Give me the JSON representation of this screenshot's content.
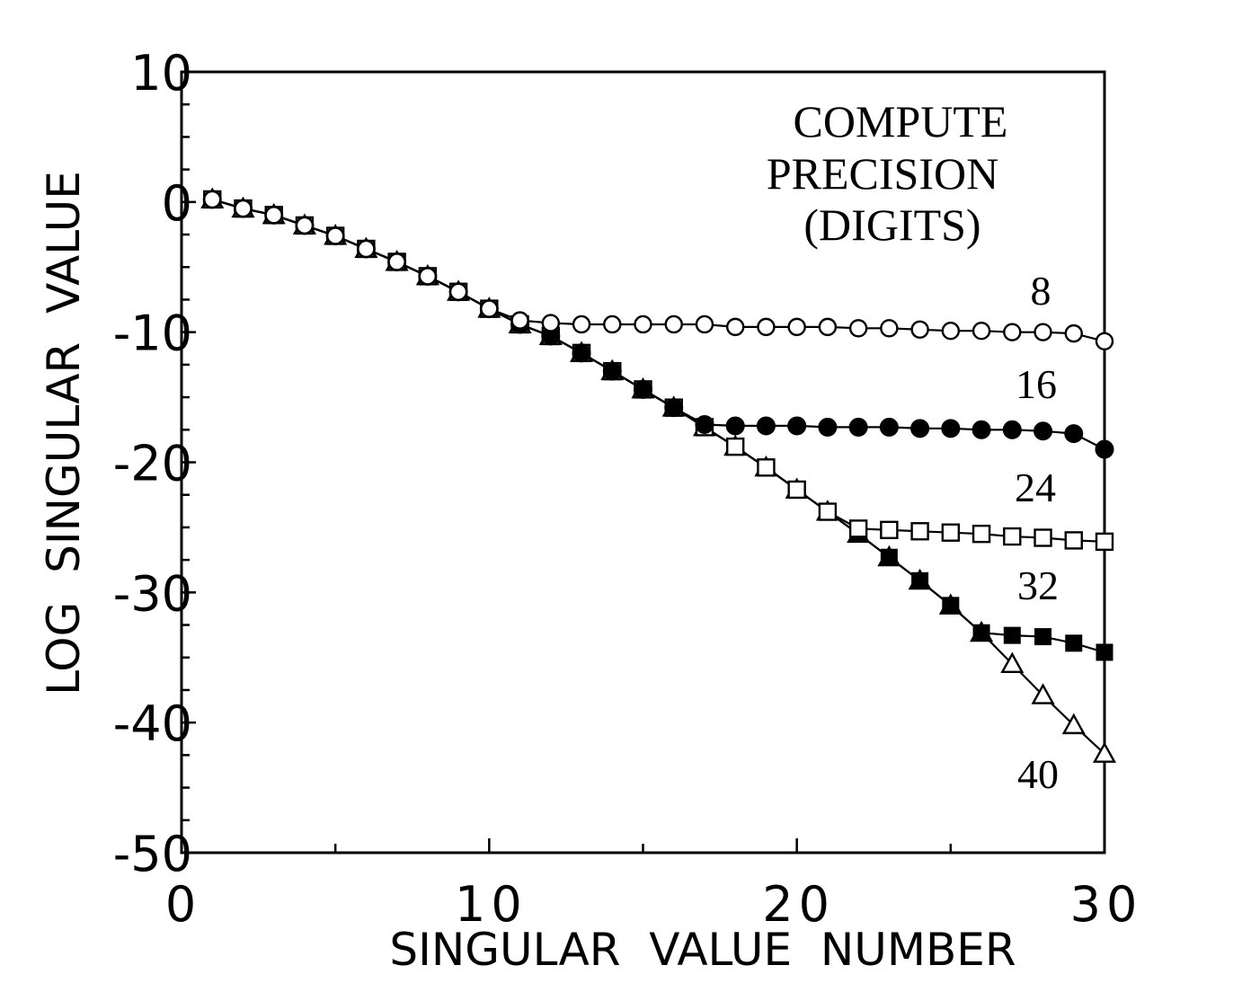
{
  "chart_data": {
    "type": "line",
    "xlabel": "SINGULAR  VALUE  NUMBER",
    "ylabel": "LOG  SINGULAR  VALUE",
    "xlim": [
      0,
      30
    ],
    "ylim": [
      -50,
      10
    ],
    "x_ticks": [
      0,
      10,
      20,
      30
    ],
    "y_ticks": [
      10,
      0,
      -10,
      -20,
      -30,
      -40,
      -50
    ],
    "x_tick_labels": [
      "0",
      "10",
      "20",
      "30"
    ],
    "y_tick_labels": [
      "10",
      "0",
      "-10",
      "-20",
      "-30",
      "-40",
      "-50"
    ],
    "grid": false,
    "legend_title": [
      "COMPUTE",
      "PRECISION",
      "(DIGITS)"
    ],
    "x": [
      1,
      2,
      3,
      4,
      5,
      6,
      7,
      8,
      9,
      10,
      11,
      12,
      13,
      14,
      15,
      16,
      17,
      18,
      19,
      20,
      21,
      22,
      23,
      24,
      25,
      26,
      27,
      28,
      29,
      30
    ],
    "series": [
      {
        "name": "8",
        "marker": "open-circle",
        "values": [
          0.2,
          -0.5,
          -1.0,
          -1.8,
          -2.6,
          -3.6,
          -4.6,
          -5.7,
          -6.9,
          -8.2,
          -9.1,
          -9.3,
          -9.4,
          -9.4,
          -9.4,
          -9.4,
          -9.4,
          -9.6,
          -9.6,
          -9.6,
          -9.6,
          -9.7,
          -9.7,
          -9.8,
          -9.9,
          -9.9,
          -10.0,
          -10.0,
          -10.1,
          -10.7
        ]
      },
      {
        "name": "16",
        "marker": "filled-circle",
        "values": [
          0.2,
          -0.5,
          -1.0,
          -1.8,
          -2.6,
          -3.6,
          -4.6,
          -5.7,
          -6.9,
          -8.2,
          -9.4,
          -10.3,
          -11.6,
          -13.0,
          -14.4,
          -15.8,
          -17.1,
          -17.2,
          -17.2,
          -17.2,
          -17.3,
          -17.3,
          -17.3,
          -17.4,
          -17.4,
          -17.5,
          -17.5,
          -17.6,
          -17.8,
          -19.0
        ]
      },
      {
        "name": "24",
        "marker": "open-square",
        "values": [
          0.2,
          -0.5,
          -1.0,
          -1.8,
          -2.6,
          -3.6,
          -4.6,
          -5.7,
          -6.9,
          -8.2,
          -9.4,
          -10.3,
          -11.6,
          -13.0,
          -14.4,
          -15.8,
          -17.3,
          -18.8,
          -20.4,
          -22.1,
          -23.8,
          -25.1,
          -25.2,
          -25.3,
          -25.4,
          -25.5,
          -25.7,
          -25.8,
          -26.0,
          -26.1
        ]
      },
      {
        "name": "32",
        "marker": "filled-square",
        "values": [
          0.2,
          -0.5,
          -1.0,
          -1.8,
          -2.6,
          -3.6,
          -4.6,
          -5.7,
          -6.9,
          -8.2,
          -9.4,
          -10.3,
          -11.6,
          -13.0,
          -14.4,
          -15.8,
          -17.3,
          -18.8,
          -20.4,
          -22.1,
          -23.8,
          -25.5,
          -27.3,
          -29.1,
          -31.0,
          -33.1,
          -33.3,
          -33.4,
          -33.9,
          -34.6
        ]
      },
      {
        "name": "40",
        "marker": "open-triangle",
        "values": [
          0.2,
          -0.5,
          -1.0,
          -1.8,
          -2.6,
          -3.6,
          -4.6,
          -5.7,
          -6.9,
          -8.2,
          -9.4,
          -10.3,
          -11.6,
          -13.0,
          -14.4,
          -15.8,
          -17.3,
          -18.8,
          -20.4,
          -22.1,
          -23.8,
          -25.5,
          -27.3,
          -29.1,
          -31.0,
          -33.1,
          -35.5,
          -37.9,
          -40.2,
          -42.4
        ]
      }
    ],
    "series_labels": [
      "8",
      "16",
      "24",
      "32",
      "40"
    ]
  }
}
